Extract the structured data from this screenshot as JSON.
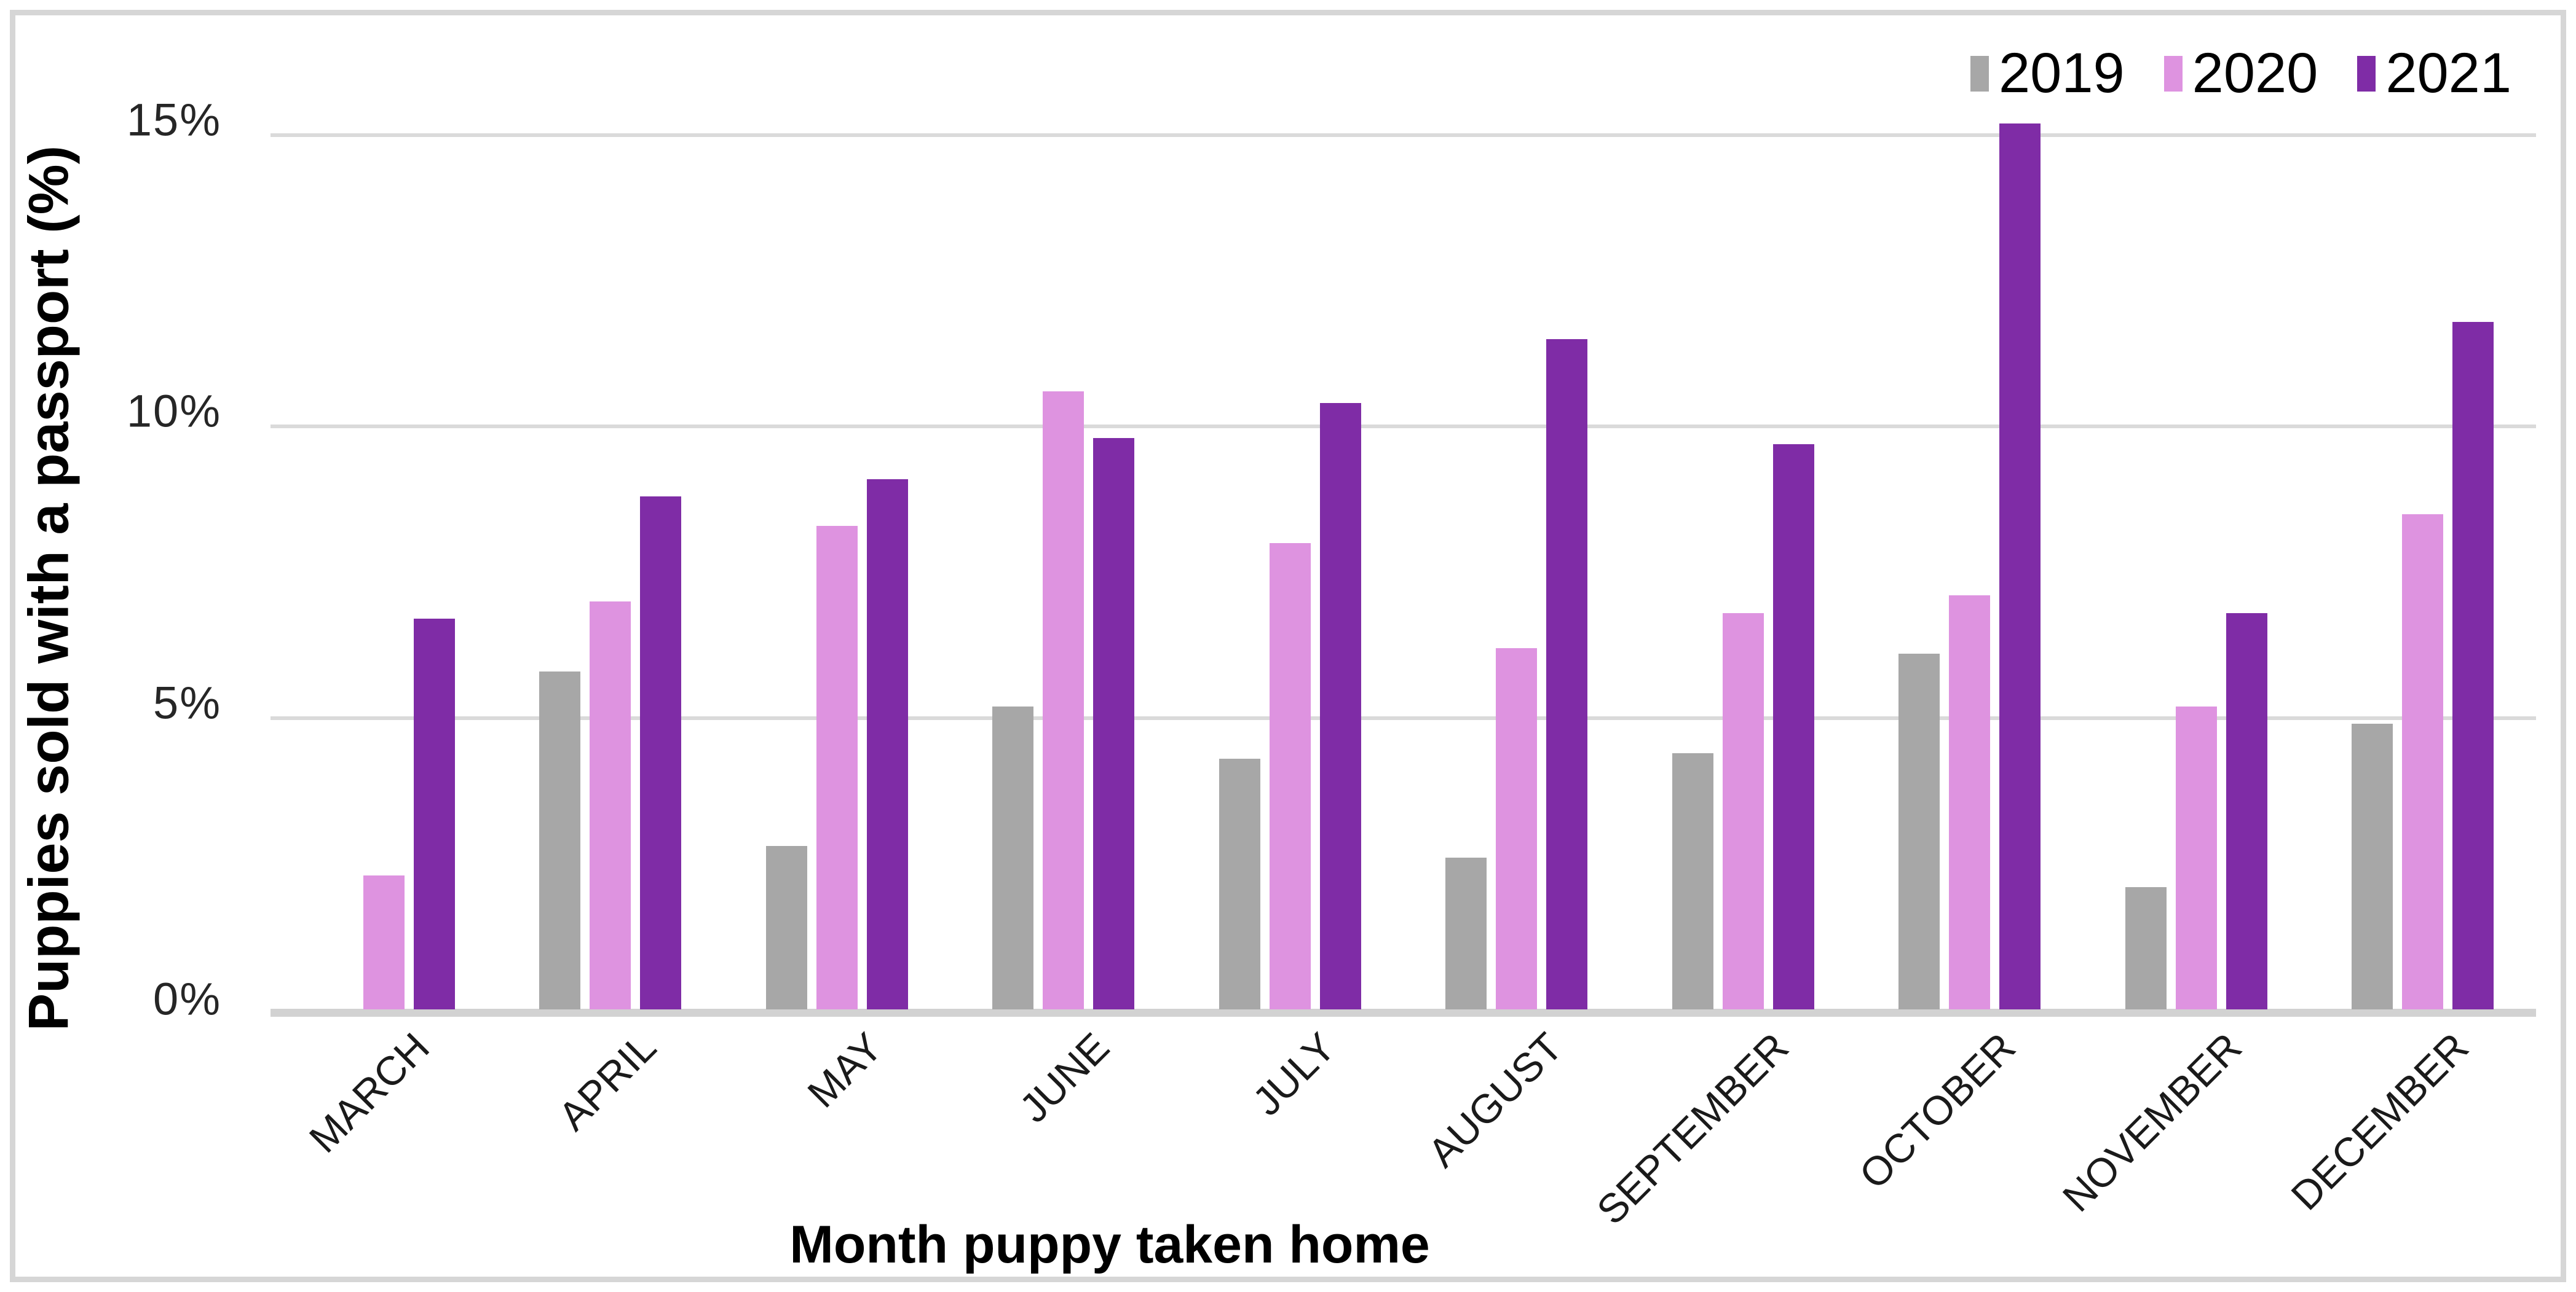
{
  "chart_data": {
    "type": "bar",
    "title": "",
    "xlabel": "Month puppy taken home",
    "ylabel": "Puppies sold with a passport (%)",
    "categories": [
      "MARCH",
      "APRIL",
      "MAY",
      "JUNE",
      "JULY",
      "AUGUST",
      "SEPTEMBER",
      "OCTOBER",
      "NOVEMBER",
      "DECEMBER"
    ],
    "series": [
      {
        "name": "2019",
        "color": "#a7a7a7",
        "values": [
          null,
          5.8,
          2.8,
          5.2,
          4.3,
          2.6,
          4.4,
          6.1,
          2.1,
          4.9
        ]
      },
      {
        "name": "2020",
        "color": "#de93e0",
        "values": [
          2.3,
          7.0,
          8.3,
          10.6,
          8.0,
          6.2,
          6.8,
          7.1,
          5.2,
          8.5
        ]
      },
      {
        "name": "2021",
        "color": "#7f2ca6",
        "values": [
          6.7,
          8.8,
          9.1,
          9.8,
          10.4,
          11.5,
          9.7,
          15.2,
          6.8,
          11.8
        ]
      }
    ],
    "y_ticks": [
      {
        "value": 0,
        "label": "0%"
      },
      {
        "value": 5,
        "label": "5%"
      },
      {
        "value": 10,
        "label": "10%"
      },
      {
        "value": 15,
        "label": "15%"
      }
    ],
    "ylim": [
      0,
      15.3
    ],
    "grid": true,
    "legend_position": "top-right",
    "colors": {
      "gridline": "#dadada",
      "axis_line": "#d2d2d2",
      "frame_border": "#d6d6d6",
      "tick_text": "#262626",
      "title_text": "#000000"
    }
  }
}
